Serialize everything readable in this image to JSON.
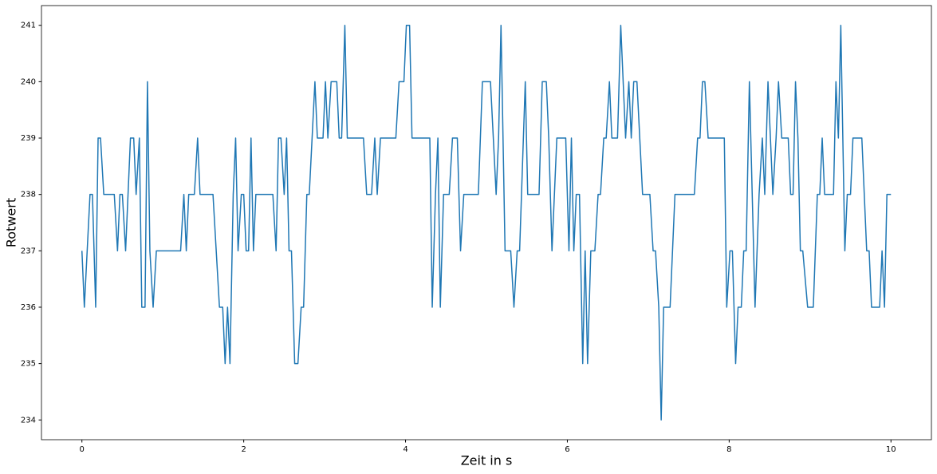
{
  "chart_data": {
    "type": "line",
    "x_label": "Zeit in s",
    "y_label": "Rotwert",
    "xlim": [
      -0.5,
      10.5
    ],
    "ylim": [
      233.65,
      241.35
    ],
    "xticks": [
      0,
      2,
      4,
      6,
      8,
      10
    ],
    "yticks": [
      234,
      235,
      236,
      237,
      238,
      239,
      240,
      241
    ],
    "grid": false,
    "x": [
      0,
      0.03,
      0.1,
      0.13,
      0.17,
      0.2,
      0.23,
      0.27,
      0.4,
      0.44,
      0.47,
      0.5,
      0.54,
      0.6,
      0.64,
      0.67,
      0.71,
      0.74,
      0.78,
      0.81,
      0.84,
      0.88,
      0.92,
      1.22,
      1.26,
      1.29,
      1.32,
      1.39,
      1.43,
      1.46,
      1.62,
      1.7,
      1.74,
      1.77,
      1.8,
      1.83,
      1.87,
      1.9,
      1.93,
      1.97,
      2.0,
      2.03,
      2.06,
      2.09,
      2.12,
      2.15,
      2.36,
      2.4,
      2.43,
      2.46,
      2.5,
      2.53,
      2.56,
      2.59,
      2.63,
      2.67,
      2.71,
      2.74,
      2.78,
      2.81,
      2.88,
      2.91,
      2.98,
      3.01,
      3.04,
      3.08,
      3.15,
      3.18,
      3.21,
      3.25,
      3.28,
      3.48,
      3.52,
      3.58,
      3.62,
      3.65,
      3.69,
      3.88,
      3.92,
      3.98,
      4.01,
      4.05,
      4.08,
      4.3,
      4.33,
      4.37,
      4.4,
      4.43,
      4.47,
      4.54,
      4.58,
      4.64,
      4.68,
      4.72,
      4.9,
      4.95,
      5.05,
      5.12,
      5.15,
      5.18,
      5.23,
      5.3,
      5.34,
      5.38,
      5.41,
      5.48,
      5.51,
      5.65,
      5.69,
      5.74,
      5.77,
      5.81,
      5.87,
      5.98,
      6.02,
      6.05,
      6.08,
      6.11,
      6.15,
      6.19,
      6.22,
      6.25,
      6.29,
      6.34,
      6.38,
      6.41,
      6.45,
      6.48,
      6.52,
      6.55,
      6.62,
      6.66,
      6.72,
      6.76,
      6.79,
      6.82,
      6.86,
      6.93,
      7.02,
      7.06,
      7.09,
      7.13,
      7.16,
      7.19,
      7.27,
      7.33,
      7.57,
      7.61,
      7.64,
      7.67,
      7.7,
      7.74,
      7.94,
      7.97,
      8.01,
      8.04,
      8.08,
      8.11,
      8.15,
      8.18,
      8.21,
      8.25,
      8.32,
      8.37,
      8.41,
      8.44,
      8.48,
      8.51,
      8.54,
      8.58,
      8.61,
      8.65,
      8.73,
      8.76,
      8.79,
      8.82,
      8.85,
      8.88,
      8.91,
      8.97,
      9.04,
      9.09,
      9.12,
      9.15,
      9.18,
      9.29,
      9.32,
      9.35,
      9.38,
      9.43,
      9.46,
      9.5,
      9.53,
      9.64,
      9.7,
      9.73,
      9.76,
      9.86,
      9.89,
      9.92,
      9.95,
      10.0
    ],
    "values": [
      237,
      236,
      238,
      238,
      236,
      239,
      239,
      238,
      238,
      237,
      238,
      238,
      237,
      239,
      239,
      238,
      239,
      236,
      236,
      240,
      237,
      236,
      237,
      237,
      238,
      237,
      238,
      238,
      239,
      238,
      238,
      236,
      236,
      235,
      236,
      235,
      238,
      239,
      237,
      238,
      238,
      237,
      237,
      239,
      237,
      238,
      238,
      237,
      239,
      239,
      238,
      239,
      237,
      237,
      235,
      235,
      236,
      236,
      238,
      238,
      240,
      239,
      239,
      240,
      239,
      240,
      240,
      239,
      239,
      241,
      239,
      239,
      238,
      238,
      239,
      238,
      239,
      239,
      240,
      240,
      241,
      241,
      239,
      239,
      236,
      238,
      239,
      236,
      238,
      238,
      239,
      239,
      237,
      238,
      238,
      240,
      240,
      238,
      239,
      241,
      237,
      237,
      236,
      237,
      237,
      240,
      238,
      238,
      240,
      240,
      239,
      237,
      239,
      239,
      237,
      239,
      237,
      238,
      238,
      235,
      237,
      235,
      237,
      237,
      238,
      238,
      239,
      239,
      240,
      239,
      239,
      241,
      239,
      240,
      239,
      240,
      240,
      238,
      238,
      237,
      237,
      236,
      234,
      236,
      236,
      238,
      238,
      239,
      239,
      240,
      240,
      239,
      239,
      236,
      237,
      237,
      235,
      236,
      236,
      237,
      237,
      240,
      236,
      238,
      239,
      238,
      240,
      239,
      238,
      239,
      240,
      239,
      239,
      238,
      238,
      240,
      239,
      237,
      237,
      236,
      236,
      238,
      238,
      239,
      238,
      238,
      240,
      239,
      241,
      237,
      238,
      238,
      239,
      239,
      237,
      237,
      236,
      236,
      237,
      236,
      238,
      238
    ],
    "color": "#1f77b4"
  }
}
